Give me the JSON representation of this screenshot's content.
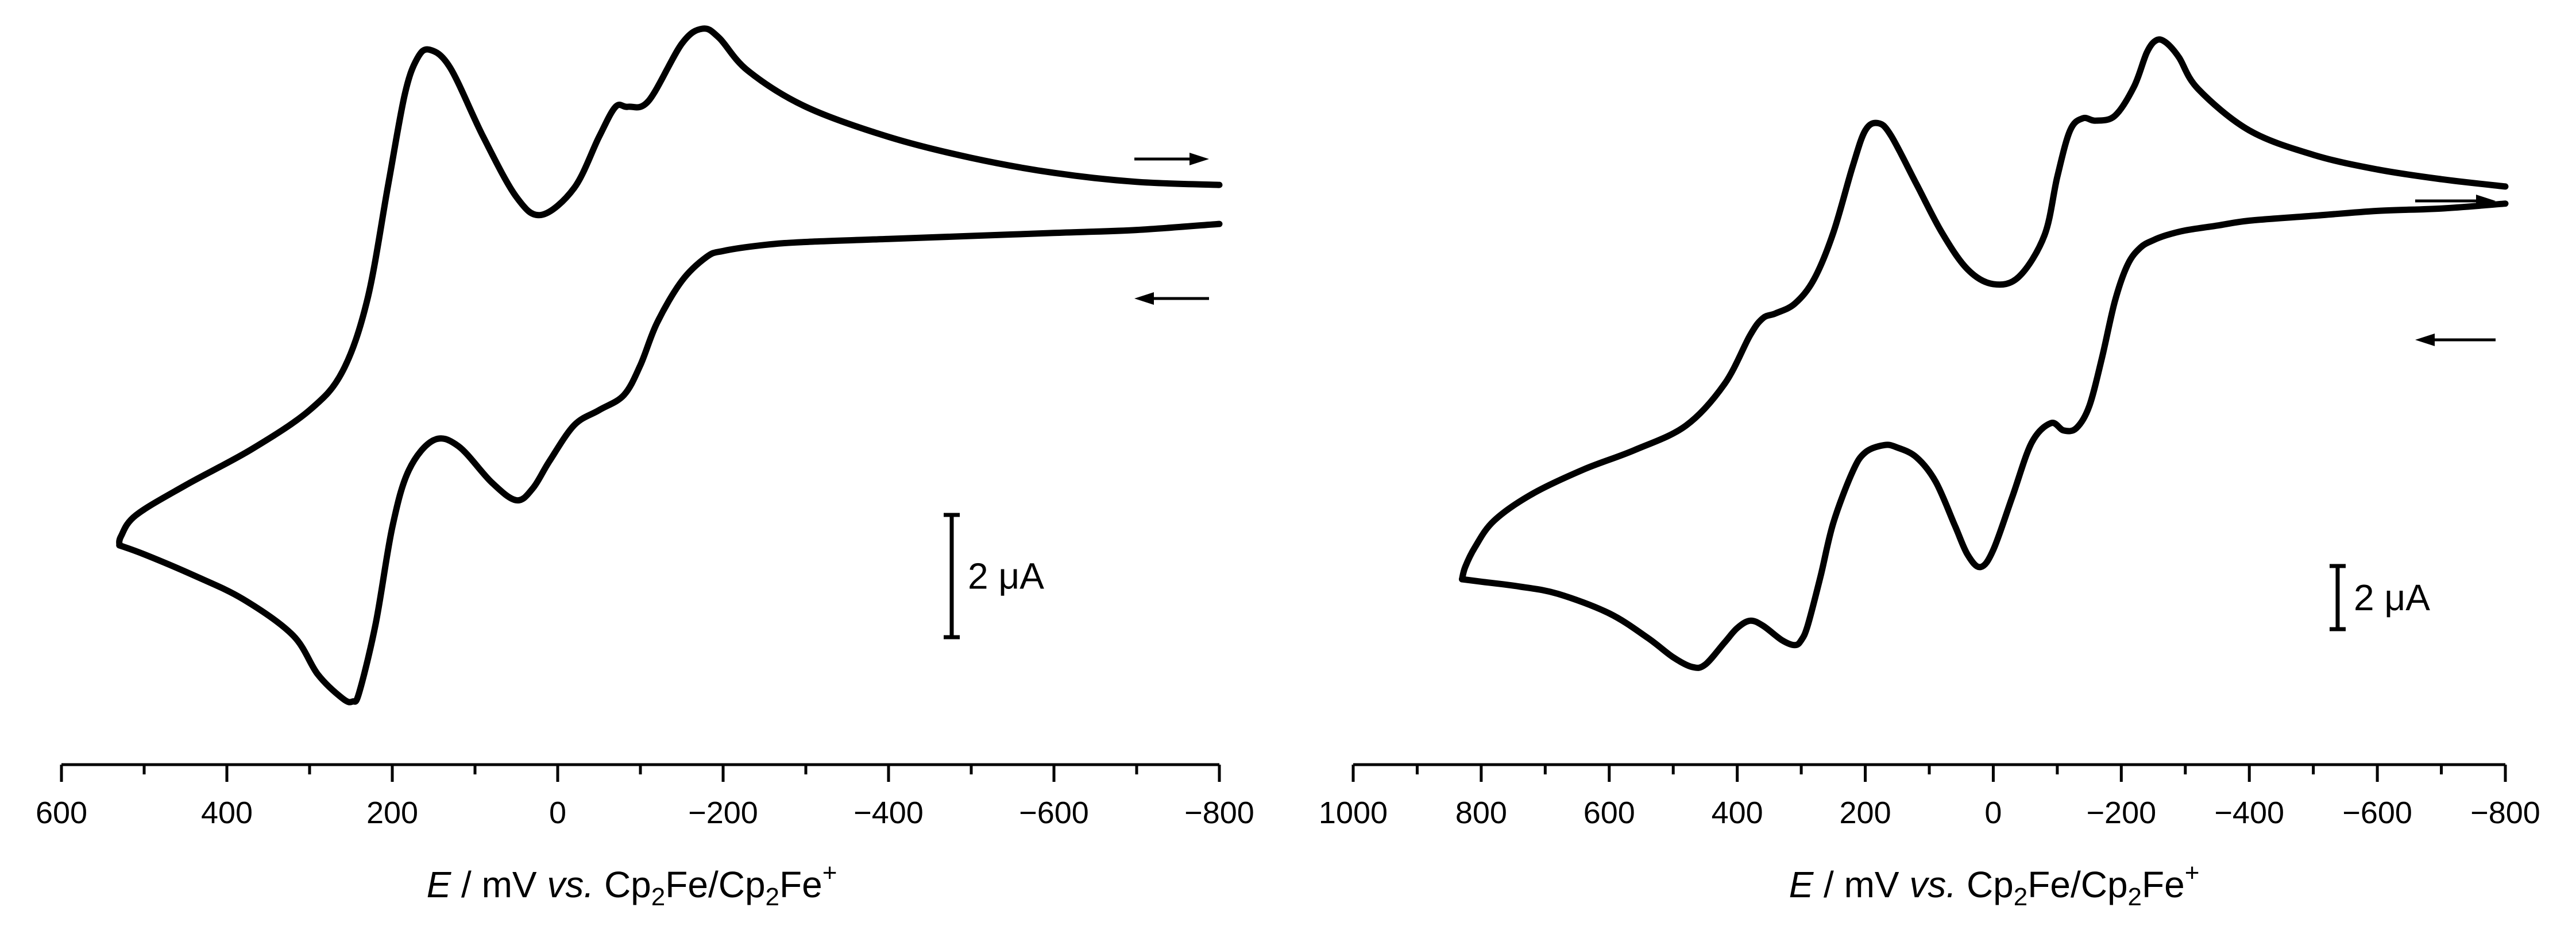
{
  "chart_data": [
    {
      "type": "line",
      "xlim": [
        600,
        -800
      ],
      "x_reversed": true,
      "x_ticks": [
        600,
        400,
        200,
        0,
        -200,
        -400,
        -600,
        -800
      ],
      "x_tick_labels": [
        "600",
        "400",
        "200",
        "0",
        "−200",
        "−400",
        "−600",
        "−800"
      ],
      "xlabel": {
        "italic": "E",
        "text": " / mV ",
        "vs": "vs.",
        "pre": "Cp",
        "sub1": "2",
        "mid": "Fe/Cp",
        "sub2": "2",
        "end": "Fe",
        "sup": "+"
      },
      "yaxis_visible": false,
      "grid": false,
      "current_scale_bar": {
        "label": "2 μA",
        "value_uA": 2
      },
      "current_scale_range": [
        -11,
        11.5
      ],
      "direction_arrows": [
        {
          "direction": "forward",
          "glyph": "→"
        },
        {
          "direction": "reverse",
          "glyph": "←"
        }
      ],
      "series": [
        {
          "x": [
            -800,
            -700,
            -600,
            -500,
            -400,
            -300,
            -230,
            -195,
            -175,
            -150,
            -110,
            -85,
            -70,
            -50,
            -20,
            20,
            50,
            90,
            130,
            155,
            170,
            185,
            205,
            230,
            260,
            300,
            370,
            450,
            510,
            528,
            530
          ],
          "y": [
            6.0,
            6.1,
            6.4,
            6.9,
            7.6,
            8.6,
            9.8,
            10.9,
            11.2,
            10.7,
            8.8,
            8.6,
            8.6,
            7.6,
            5.9,
            5.0,
            5.6,
            7.6,
            9.9,
            10.5,
            10.2,
            9.0,
            6.0,
            2.2,
            -0.2,
            -1.5,
            -2.8,
            -4.0,
            -5.0,
            -5.7,
            -6.0
          ]
        },
        {
          "x": [
            530,
            500,
            440,
            380,
            320,
            290,
            260,
            248,
            240,
            220,
            200,
            180,
            150,
            120,
            80,
            50,
            30,
            10,
            -20,
            -50,
            -80,
            -100,
            -120,
            -150,
            -180,
            -200,
            -250,
            -300,
            -400,
            -500,
            -600,
            -700,
            -800
          ],
          "y": [
            -6.0,
            -6.3,
            -7.0,
            -7.8,
            -9.0,
            -10.3,
            -11.1,
            -11.2,
            -10.9,
            -8.6,
            -5.4,
            -3.5,
            -2.5,
            -2.7,
            -3.9,
            -4.5,
            -4.1,
            -3.2,
            -2.0,
            -1.5,
            -1.0,
            0.0,
            1.4,
            2.8,
            3.6,
            3.8,
            4.0,
            4.1,
            4.2,
            4.3,
            4.4,
            4.5,
            4.7
          ]
        }
      ]
    },
    {
      "type": "line",
      "xlim": [
        1000,
        -800
      ],
      "x_reversed": true,
      "x_ticks": [
        1000,
        800,
        600,
        400,
        200,
        0,
        -200,
        -400,
        -600,
        -800
      ],
      "x_tick_labels": [
        "1000",
        "800",
        "600",
        "400",
        "200",
        "0",
        "−200",
        "−400",
        "−600",
        "−800"
      ],
      "xlabel": {
        "italic": "E",
        "text": " / mV ",
        "vs": "vs.",
        "pre": "Cp",
        "sub1": "2",
        "mid": "Fe/Cp",
        "sub2": "2",
        "end": "Fe",
        "sup": "+"
      },
      "yaxis_visible": false,
      "grid": false,
      "current_scale_bar": {
        "label": "2 μA",
        "value_uA": 2
      },
      "current_scale_range": [
        -11,
        11.5
      ],
      "direction_arrows": [
        {
          "direction": "forward",
          "glyph": "→"
        },
        {
          "direction": "reverse",
          "glyph": "←"
        }
      ],
      "series": [
        {
          "x": [
            -800,
            -700,
            -600,
            -500,
            -400,
            -320,
            -290,
            -270,
            -255,
            -240,
            -220,
            -190,
            -160,
            -140,
            -120,
            -100,
            -80,
            -40,
            0,
            40,
            80,
            120,
            160,
            180,
            200,
            220,
            250,
            280,
            310,
            340,
            360,
            380,
            420,
            480,
            560,
            640,
            720,
            780,
            810,
            825,
            830
          ],
          "y": [
            5.5,
            5.8,
            6.2,
            6.8,
            7.8,
            9.5,
            10.8,
            11.4,
            11.5,
            11.0,
            9.6,
            8.4,
            8.2,
            8.3,
            7.8,
            5.9,
            3.5,
            1.8,
            1.5,
            2.1,
            3.6,
            5.6,
            7.6,
            8.1,
            7.8,
            6.3,
            3.6,
            1.7,
            0.7,
            0.3,
            0.1,
            -0.6,
            -2.6,
            -4.3,
            -5.3,
            -6.1,
            -7.1,
            -8.2,
            -9.3,
            -10.1,
            -10.6
          ]
        },
        {
          "x": [
            830,
            800,
            740,
            680,
            600,
            540,
            500,
            470,
            450,
            420,
            400,
            380,
            360,
            330,
            310,
            300,
            290,
            270,
            250,
            220,
            200,
            170,
            150,
            120,
            90,
            60,
            40,
            20,
            0,
            -30,
            -60,
            -90,
            -110,
            -130,
            -150,
            -170,
            -190,
            -210,
            -230,
            -250,
            -270,
            -300,
            -350,
            -400,
            -500,
            -600,
            -700,
            -800
          ],
          "y": [
            -10.6,
            -10.7,
            -10.9,
            -11.2,
            -12.0,
            -13.0,
            -13.8,
            -14.2,
            -14.1,
            -13.2,
            -12.6,
            -12.3,
            -12.5,
            -13.1,
            -13.3,
            -13.1,
            -12.5,
            -10.5,
            -8.3,
            -6.2,
            -5.4,
            -5.1,
            -5.2,
            -5.6,
            -6.6,
            -8.4,
            -9.6,
            -10.1,
            -9.4,
            -7.2,
            -5.0,
            -4.2,
            -4.5,
            -4.4,
            -3.5,
            -1.5,
            0.8,
            2.3,
            3.0,
            3.3,
            3.5,
            3.7,
            3.9,
            4.1,
            4.3,
            4.5,
            4.6,
            4.8
          ]
        }
      ]
    }
  ]
}
